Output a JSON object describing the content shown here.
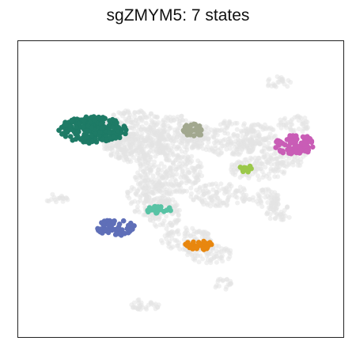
{
  "chart_data": {
    "type": "scatter",
    "title": "sgZMYM5: 7 states",
    "xlabel": "",
    "ylabel": "",
    "ticks": false,
    "grid": false,
    "legend": "none",
    "xlim": [
      0,
      100
    ],
    "ylim": [
      0,
      100
    ],
    "background": {
      "name": "",
      "color": "#e3e3e3",
      "regions": [
        {
          "cx": 36,
          "cy": 68,
          "rx": 11,
          "ry": 9
        },
        {
          "cx": 48,
          "cy": 68,
          "rx": 9,
          "ry": 7
        },
        {
          "cx": 46,
          "cy": 56,
          "rx": 11,
          "ry": 8
        },
        {
          "cx": 40,
          "cy": 47,
          "rx": 7,
          "ry": 6
        },
        {
          "cx": 45,
          "cy": 42,
          "rx": 5,
          "ry": 6
        },
        {
          "cx": 52,
          "cy": 33,
          "rx": 8,
          "ry": 4
        },
        {
          "cx": 59,
          "cy": 28,
          "rx": 7,
          "ry": 3
        },
        {
          "cx": 64,
          "cy": 67,
          "rx": 11,
          "ry": 6
        },
        {
          "cx": 74,
          "cy": 67,
          "rx": 6,
          "ry": 5
        },
        {
          "cx": 74,
          "cy": 57,
          "rx": 9,
          "ry": 4
        },
        {
          "cx": 82,
          "cy": 61,
          "rx": 7,
          "ry": 4
        },
        {
          "cx": 62,
          "cy": 48,
          "rx": 9,
          "ry": 4
        },
        {
          "cx": 76,
          "cy": 47,
          "rx": 5,
          "ry": 3
        },
        {
          "cx": 80,
          "cy": 42,
          "rx": 4,
          "ry": 3
        },
        {
          "cx": 85,
          "cy": 72,
          "rx": 5,
          "ry": 3
        },
        {
          "cx": 33,
          "cy": 65,
          "rx": 7,
          "ry": 4
        },
        {
          "cx": 80,
          "cy": 86,
          "rx": 4,
          "ry": 2
        },
        {
          "cx": 12,
          "cy": 47,
          "rx": 4,
          "ry": 1.5
        },
        {
          "cx": 39,
          "cy": 11,
          "rx": 5,
          "ry": 2
        },
        {
          "cx": 63,
          "cy": 18,
          "rx": 3,
          "ry": 2
        },
        {
          "cx": 78,
          "cy": 45,
          "rx": 2,
          "ry": 2
        }
      ]
    },
    "series": [
      {
        "name": "",
        "color": "#1e7b66",
        "cx": 23,
        "cy": 70,
        "rx": 10.5,
        "ry": 4.5,
        "n": 230
      },
      {
        "name": "",
        "color": "#a2a88f",
        "cx": 54,
        "cy": 70,
        "rx": 3.3,
        "ry": 2.2,
        "n": 30
      },
      {
        "name": "",
        "color": "#c95db6",
        "cx": 85,
        "cy": 65,
        "rx": 6,
        "ry": 3.6,
        "n": 90
      },
      {
        "name": "",
        "color": "#9bc84a",
        "cx": 70,
        "cy": 57,
        "rx": 1.8,
        "ry": 1.3,
        "n": 12
      },
      {
        "name": "",
        "color": "#58c3a5",
        "cx": 43,
        "cy": 43,
        "rx": 4,
        "ry": 1.5,
        "n": 25
      },
      {
        "name": "",
        "color": "#5f6fb8",
        "cx": 30,
        "cy": 37,
        "rx": 5.8,
        "ry": 2.8,
        "n": 60
      },
      {
        "name": "",
        "color": "#e8870f",
        "cx": 56,
        "cy": 31,
        "rx": 4.8,
        "ry": 1.6,
        "n": 35
      }
    ]
  }
}
